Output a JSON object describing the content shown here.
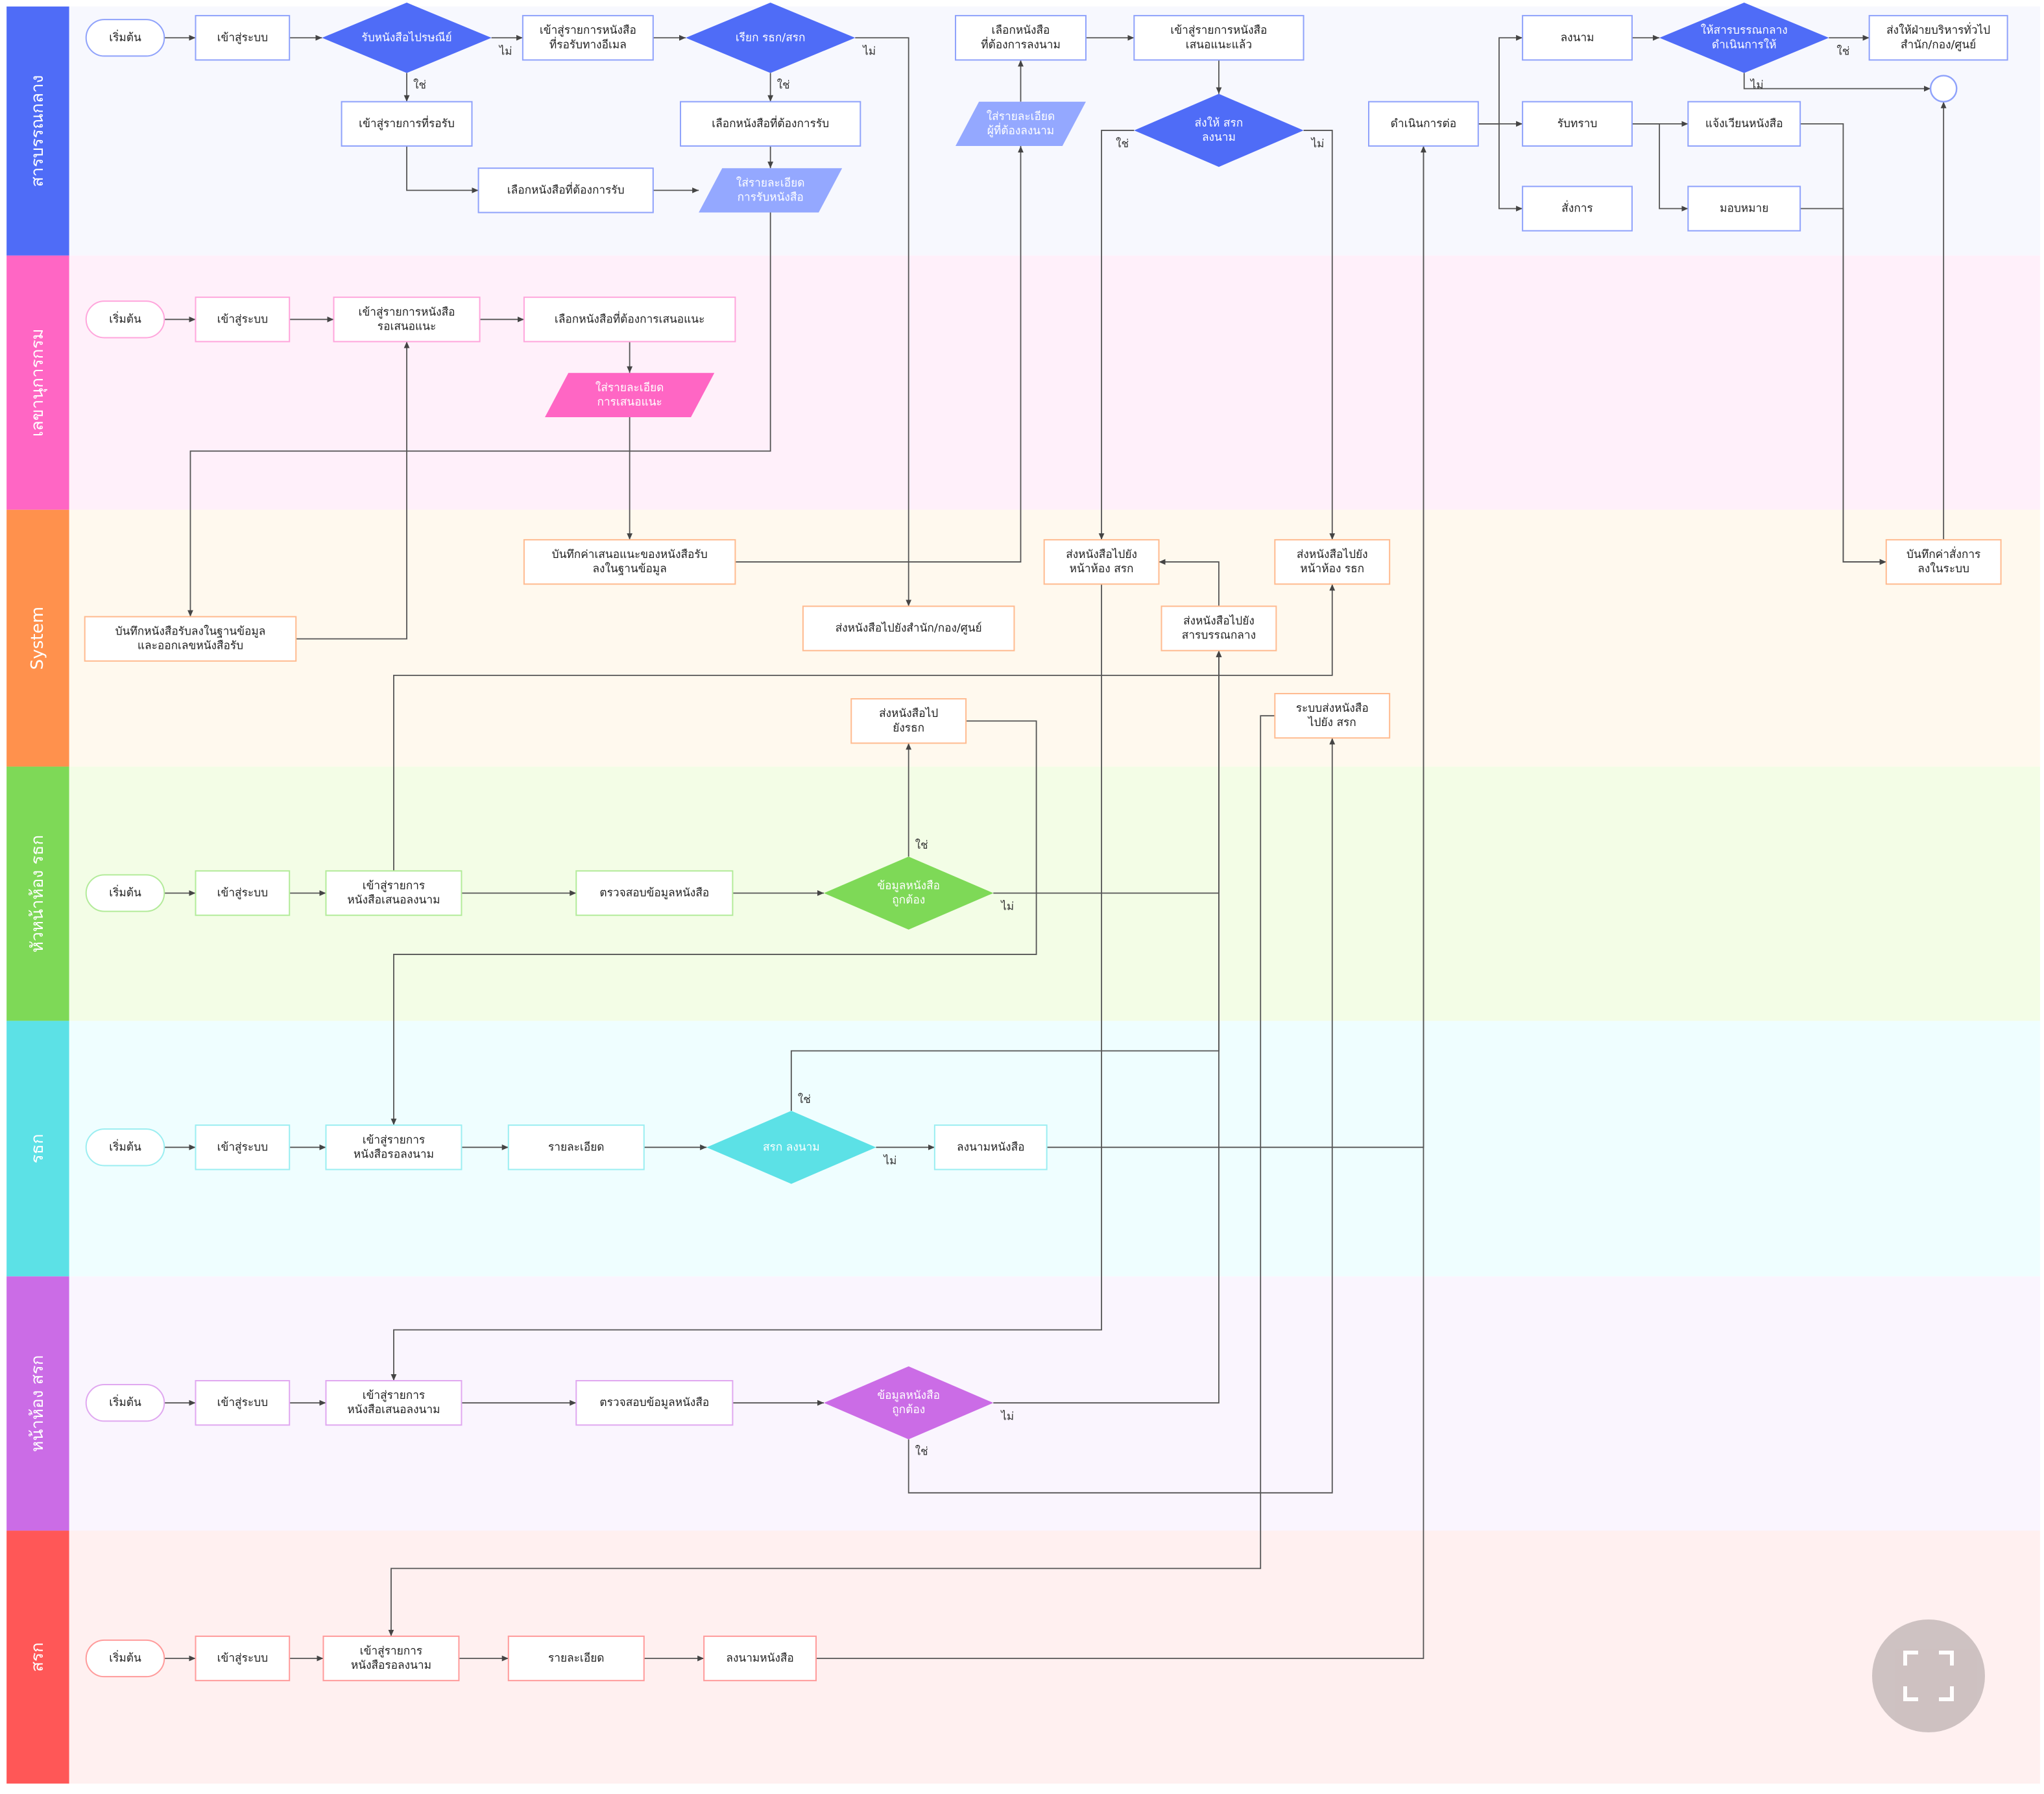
{
  "colors": {
    "edge": "#555555",
    "box_fill": "#ffffff"
  },
  "lanes": [
    {
      "label": "สารบรรณกลาง",
      "color": "#4f6cf7",
      "bg": "#f7f8fe",
      "box_border": "#8fa2fb",
      "para": "#94a8ff"
    },
    {
      "label": "เลขานุการกรม",
      "color": "#ff66c4",
      "bg": "#fff0fa",
      "box_border": "#ffa6dc",
      "para": "#ff66c4"
    },
    {
      "label": "System",
      "color": "#ff914d",
      "bg": "#fff9ee",
      "box_border": "#ffbb90",
      "para": "#ff914d"
    },
    {
      "label": "หัวหน้าห้อง รธก",
      "color": "#7ed957",
      "bg": "#f3fde6",
      "box_border": "#b3eb9a",
      "para": "#7ed957"
    },
    {
      "label": "รธก",
      "color": "#5ce1e6",
      "bg": "#effeff",
      "box_border": "#9beef1",
      "para": "#5ce1e6"
    },
    {
      "label": "หน้าห้อง สรก",
      "color": "#cb6ce6",
      "bg": "#faf5fe",
      "box_border": "#e0a8f0",
      "para": "#cb6ce6"
    },
    {
      "label": "สรก",
      "color": "#ff5757",
      "bg": "#fff0f0",
      "box_border": "#ff9b9b",
      "para": "#ff5757"
    }
  ],
  "nodes": [
    {
      "id": "n1",
      "lane": 0,
      "shape": "terminal",
      "lines": [
        "เริ่มต้น"
      ]
    },
    {
      "id": "n2",
      "lane": 0,
      "shape": "box",
      "lines": [
        "เข้าสู่ระบบ"
      ]
    },
    {
      "id": "n3",
      "lane": 0,
      "shape": "diamond",
      "lines": [
        "รับหนังสือไปรษณีย์"
      ]
    },
    {
      "id": "n4",
      "lane": 0,
      "shape": "box",
      "lines": [
        "เข้าสู่รายการหนังสือ",
        "ที่รอรับทางอีเมล"
      ]
    },
    {
      "id": "n5",
      "lane": 0,
      "shape": "diamond",
      "lines": [
        "เรียก รธก/สรก"
      ]
    },
    {
      "id": "n6",
      "lane": 0,
      "shape": "box",
      "lines": [
        "เข้าสู่รายการที่รอรับ"
      ]
    },
    {
      "id": "n7",
      "lane": 0,
      "shape": "box",
      "lines": [
        "เลือกหนังสือที่ต้องการรับ"
      ]
    },
    {
      "id": "n8",
      "lane": 0,
      "shape": "box",
      "lines": [
        "เลือกหนังสือที่ต้องการรับ"
      ]
    },
    {
      "id": "n9",
      "lane": 0,
      "shape": "para",
      "lines": [
        "ใส่รายละเอียด",
        "การรับหนังสือ"
      ]
    },
    {
      "id": "n10",
      "lane": 0,
      "shape": "box",
      "lines": [
        "เลือกหนังสือ",
        "ที่ต้องการลงนาม"
      ]
    },
    {
      "id": "n11",
      "lane": 0,
      "shape": "box",
      "lines": [
        "เข้าสู่รายการหนังสือ",
        "เสนอแนะแล้ว"
      ]
    },
    {
      "id": "n12",
      "lane": 0,
      "shape": "para",
      "lines": [
        "ใส่รายละเอียด",
        "ผู้ที่ต้องลงนาม"
      ]
    },
    {
      "id": "n13",
      "lane": 0,
      "shape": "diamond",
      "lines": [
        "ส่งให้ สรก",
        "ลงนาม"
      ]
    },
    {
      "id": "n14",
      "lane": 0,
      "shape": "box",
      "lines": [
        "ดำเนินการต่อ"
      ]
    },
    {
      "id": "n15",
      "lane": 0,
      "shape": "box",
      "lines": [
        "ลงนาม"
      ]
    },
    {
      "id": "n16",
      "lane": 0,
      "shape": "box",
      "lines": [
        "รับทราบ"
      ]
    },
    {
      "id": "n17",
      "lane": 0,
      "shape": "box",
      "lines": [
        "สั่งการ"
      ]
    },
    {
      "id": "n18",
      "lane": 0,
      "shape": "diamond",
      "lines": [
        "ให้สารบรรณกลาง",
        "ดำเนินการให้"
      ]
    },
    {
      "id": "n19",
      "lane": 0,
      "shape": "box",
      "lines": [
        "ส่งให้ฝ่ายบริหารทั่วไป",
        "สำนัก/กอง/ศูนย์"
      ]
    },
    {
      "id": "n20",
      "lane": 0,
      "shape": "box",
      "lines": [
        "แจ้งเวียนหนังสือ"
      ]
    },
    {
      "id": "n21",
      "lane": 0,
      "shape": "box",
      "lines": [
        "มอบหมาย"
      ]
    },
    {
      "id": "n22",
      "lane": 0,
      "shape": "circle",
      "lines": []
    },
    {
      "id": "m1",
      "lane": 1,
      "shape": "terminal",
      "lines": [
        "เริ่มต้น"
      ]
    },
    {
      "id": "m2",
      "lane": 1,
      "shape": "box",
      "lines": [
        "เข้าสู่ระบบ"
      ]
    },
    {
      "id": "m3",
      "lane": 1,
      "shape": "box",
      "lines": [
        "เข้าสู่รายการหนังสือ",
        "รอเสนอแนะ"
      ]
    },
    {
      "id": "m4",
      "lane": 1,
      "shape": "box",
      "lines": [
        "เลือกหนังสือที่ต้องการเสนอแนะ"
      ]
    },
    {
      "id": "m5",
      "lane": 1,
      "shape": "para",
      "lines": [
        "ใส่รายละเอียด",
        "การเสนอแนะ"
      ]
    },
    {
      "id": "s1",
      "lane": 2,
      "shape": "box",
      "lines": [
        "บันทึกหนังสือรับลงในฐานข้อมูล",
        "และออกเลขหนังสือรับ"
      ]
    },
    {
      "id": "s2",
      "lane": 2,
      "shape": "box",
      "lines": [
        "บันทึกค่าเสนอแนะของหนังสือรับ",
        "ลงในฐานข้อมูล"
      ]
    },
    {
      "id": "s3",
      "lane": 2,
      "shape": "box",
      "lines": [
        "ส่งหนังสือไปยังสำนัก/กอง/ศูนย์"
      ]
    },
    {
      "id": "s4",
      "lane": 2,
      "shape": "box",
      "lines": [
        "ส่งหนังสือไปยัง",
        "หน้าห้อง สรก"
      ]
    },
    {
      "id": "s5",
      "lane": 2,
      "shape": "box",
      "lines": [
        "ส่งหนังสือไปยัง",
        "หน้าห้อง รธก"
      ]
    },
    {
      "id": "s6",
      "lane": 2,
      "shape": "box",
      "lines": [
        "ส่งหนังสือไปยัง",
        "สารบรรณกลาง"
      ]
    },
    {
      "id": "s7",
      "lane": 2,
      "shape": "box",
      "lines": [
        "ระบบส่งหนังสือ",
        "ไปยัง สรก"
      ]
    },
    {
      "id": "s8",
      "lane": 2,
      "shape": "box",
      "lines": [
        "บันทึกค่าสั่งการ",
        "ลงในระบบ"
      ]
    },
    {
      "id": "s9",
      "lane": 2,
      "shape": "box",
      "lines": [
        "ส่งหนังสือไป",
        "ยังรธก"
      ]
    },
    {
      "id": "h1",
      "lane": 3,
      "shape": "terminal",
      "lines": [
        "เริ่มต้น"
      ]
    },
    {
      "id": "h2",
      "lane": 3,
      "shape": "box",
      "lines": [
        "เข้าสู่ระบบ"
      ]
    },
    {
      "id": "h3",
      "lane": 3,
      "shape": "box",
      "lines": [
        "เข้าสู่รายการ",
        "หนังสือเสนอลงนาม"
      ]
    },
    {
      "id": "h4",
      "lane": 3,
      "shape": "box",
      "lines": [
        "ตรวจสอบข้อมูลหนังสือ"
      ]
    },
    {
      "id": "h5",
      "lane": 3,
      "shape": "diamond",
      "lines": [
        "ข้อมูลหนังสือ",
        "ถูกต้อง"
      ]
    },
    {
      "id": "r1",
      "lane": 4,
      "shape": "terminal",
      "lines": [
        "เริ่มต้น"
      ]
    },
    {
      "id": "r2",
      "lane": 4,
      "shape": "box",
      "lines": [
        "เข้าสู่ระบบ"
      ]
    },
    {
      "id": "r3",
      "lane": 4,
      "shape": "box",
      "lines": [
        "เข้าสู่รายการ",
        "หนังสือรอลงนาม"
      ]
    },
    {
      "id": "r4",
      "lane": 4,
      "shape": "box",
      "lines": [
        "รายละเอียด"
      ]
    },
    {
      "id": "r5",
      "lane": 4,
      "shape": "diamond",
      "lines": [
        "สรก ลงนาม"
      ]
    },
    {
      "id": "r6",
      "lane": 4,
      "shape": "box",
      "lines": [
        "ลงนามหนังสือ"
      ]
    },
    {
      "id": "p1",
      "lane": 5,
      "shape": "terminal",
      "lines": [
        "เริ่มต้น"
      ]
    },
    {
      "id": "p2",
      "lane": 5,
      "shape": "box",
      "lines": [
        "เข้าสู่ระบบ"
      ]
    },
    {
      "id": "p3",
      "lane": 5,
      "shape": "box",
      "lines": [
        "เข้าสู่รายการ",
        "หนังสือเสนอลงนาม"
      ]
    },
    {
      "id": "p4",
      "lane": 5,
      "shape": "box",
      "lines": [
        "ตรวจสอบข้อมูลหนังสือ"
      ]
    },
    {
      "id": "p5",
      "lane": 5,
      "shape": "diamond",
      "lines": [
        "ข้อมูลหนังสือ",
        "ถูกต้อง"
      ]
    },
    {
      "id": "q1",
      "lane": 6,
      "shape": "terminal",
      "lines": [
        "เริ่มต้น"
      ]
    },
    {
      "id": "q2",
      "lane": 6,
      "shape": "box",
      "lines": [
        "เข้าสู่ระบบ"
      ]
    },
    {
      "id": "q3",
      "lane": 6,
      "shape": "box",
      "lines": [
        "เข้าสู่รายการ",
        "หนังสือรอลงนาม"
      ]
    },
    {
      "id": "q4",
      "lane": 6,
      "shape": "box",
      "lines": [
        "รายละเอียด"
      ]
    },
    {
      "id": "q5",
      "lane": 6,
      "shape": "box",
      "lines": [
        "ลงนามหนังสือ"
      ]
    }
  ],
  "edges": [
    {
      "from": "n1",
      "to": "n2"
    },
    {
      "from": "n2",
      "to": "n3"
    },
    {
      "from": "n3",
      "to": "n4",
      "label": "ไม่"
    },
    {
      "from": "n4",
      "to": "n5"
    },
    {
      "from": "n3",
      "to": "n6",
      "label": "ใช่"
    },
    {
      "from": "n5",
      "to": "n7",
      "label": "ใช่"
    },
    {
      "from": "n6",
      "to": "n8"
    },
    {
      "from": "n8",
      "to": "n9"
    },
    {
      "from": "n7",
      "to": "n9"
    },
    {
      "from": "n5",
      "to": "s3",
      "label": "ไม่"
    },
    {
      "from": "n9",
      "to": "s1"
    },
    {
      "from": "s1",
      "to": "m3"
    },
    {
      "from": "m1",
      "to": "m2"
    },
    {
      "from": "m2",
      "to": "m3"
    },
    {
      "from": "m3",
      "to": "m4"
    },
    {
      "from": "m4",
      "to": "m5"
    },
    {
      "from": "m5",
      "to": "s2"
    },
    {
      "from": "s2",
      "to": "n12"
    },
    {
      "from": "n12",
      "to": "n10"
    },
    {
      "from": "n10",
      "to": "n11"
    },
    {
      "from": "n11",
      "to": "n13"
    },
    {
      "from": "n13",
      "to": "s4",
      "label": "ใช่"
    },
    {
      "from": "n13",
      "to": "s5",
      "label": "ไม่"
    },
    {
      "from": "s4",
      "to": "p3"
    },
    {
      "from": "h3",
      "to": "s5"
    },
    {
      "from": "s6",
      "to": "s4"
    },
    {
      "from": "h1",
      "to": "h2"
    },
    {
      "from": "h2",
      "to": "h3"
    },
    {
      "from": "h3",
      "to": "h4"
    },
    {
      "from": "h4",
      "to": "h5"
    },
    {
      "from": "h5",
      "to": "s9",
      "label": "ใช่"
    },
    {
      "from": "h5",
      "to": "s6",
      "label": "ไม่"
    },
    {
      "from": "s9",
      "to": "r3"
    },
    {
      "from": "r1",
      "to": "r2"
    },
    {
      "from": "r2",
      "to": "r3"
    },
    {
      "from": "r3",
      "to": "r4"
    },
    {
      "from": "r4",
      "to": "r5"
    },
    {
      "from": "r5",
      "to": "s6",
      "label": "ใช่"
    },
    {
      "from": "r5",
      "to": "r6",
      "label": "ไม่"
    },
    {
      "from": "r6",
      "to": "n14"
    },
    {
      "from": "p1",
      "to": "p2"
    },
    {
      "from": "p2",
      "to": "p3"
    },
    {
      "from": "p3",
      "to": "p4"
    },
    {
      "from": "p4",
      "to": "p5"
    },
    {
      "from": "p5",
      "to": "s6",
      "label": "ไม่"
    },
    {
      "from": "p5",
      "to": "s7",
      "label": "ใช่"
    },
    {
      "from": "s7",
      "to": "q3"
    },
    {
      "from": "q1",
      "to": "q2"
    },
    {
      "from": "q2",
      "to": "q3"
    },
    {
      "from": "q3",
      "to": "q4"
    },
    {
      "from": "q4",
      "to": "q5"
    },
    {
      "from": "q5",
      "to": "n14"
    },
    {
      "from": "n14",
      "to": "n15"
    },
    {
      "from": "n14",
      "to": "n16"
    },
    {
      "from": "n14",
      "to": "n17"
    },
    {
      "from": "n15",
      "to": "n18"
    },
    {
      "from": "n18",
      "to": "n19",
      "label": "ใช่"
    },
    {
      "from": "n18",
      "to": "n22",
      "label": "ไม่"
    },
    {
      "from": "n16",
      "to": "n20"
    },
    {
      "from": "n16",
      "to": "n21"
    },
    {
      "from": "n20",
      "to": "s8"
    },
    {
      "from": "n21",
      "to": "s8"
    },
    {
      "from": "s8",
      "to": "n22"
    }
  ],
  "fullscreen": {
    "icon": "fullscreen-icon"
  }
}
